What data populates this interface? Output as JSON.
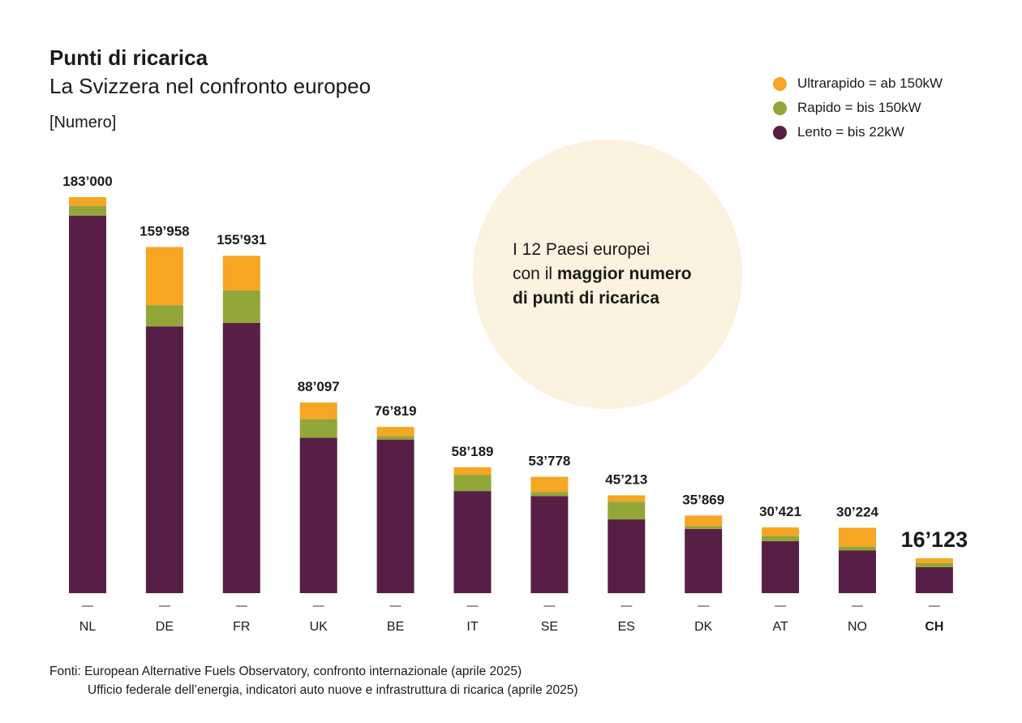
{
  "title": "Punti di ricarica",
  "subtitle": "La Svizzera nel confronto europeo",
  "unit": "[Numero]",
  "legend": [
    {
      "label": "Ultrarapido = ab 150kW",
      "color": "#f5a623"
    },
    {
      "label": "Rapido = bis 150kW",
      "color": "#93a63a"
    },
    {
      "label": "Lento = bis 22kW",
      "color": "#571f45"
    }
  ],
  "note": {
    "line1": "I 12 Paesi europei",
    "line2_prefix": "con il ",
    "line2_bold": "maggior numero",
    "line3_bold": "di punti di ricarica"
  },
  "sources": {
    "line1": "Fonti: European Alternative Fuels Observatory, confronto internazionale (aprile 2025)",
    "line2": "Ufficio federale dell’energia, indicatori auto nuove e infrastruttura di ricarica (aprile 2025)"
  },
  "chart_data": {
    "type": "bar",
    "stacked": true,
    "categories": [
      "NL",
      "DE",
      "FR",
      "UK",
      "BE",
      "IT",
      "SE",
      "ES",
      "DK",
      "AT",
      "NO",
      "CH"
    ],
    "highlight": "CH",
    "totals_labels": [
      "183’000",
      "159’958",
      "155’931",
      "88’097",
      "76’819",
      "58’189",
      "53’778",
      "45’213",
      "35’869",
      "30’421",
      "30’224",
      "16’123"
    ],
    "totals": [
      183000,
      159958,
      155931,
      88097,
      76819,
      58189,
      53778,
      45213,
      35869,
      30421,
      30224,
      16123
    ],
    "series": [
      {
        "name": "Lento = bis 22kW",
        "color": "#571f45",
        "values": [
          174500,
          123300,
          124900,
          71800,
          71000,
          47200,
          44900,
          34100,
          29700,
          24000,
          19800,
          12000
        ]
      },
      {
        "name": "Rapido = bis 150kW",
        "color": "#93a63a",
        "values": [
          4500,
          9800,
          15000,
          8700,
          1600,
          7500,
          1900,
          8200,
          1300,
          2400,
          1700,
          1900
        ]
      },
      {
        "name": "Ultrarapido = ab 150kW",
        "color": "#f5a623",
        "values": [
          4000,
          26858,
          16031,
          7597,
          4219,
          3489,
          6978,
          2913,
          4869,
          4021,
          8724,
          2223
        ]
      }
    ],
    "ylim": [
      0,
      183000
    ],
    "grid": false,
    "legend_position": "top-right"
  }
}
